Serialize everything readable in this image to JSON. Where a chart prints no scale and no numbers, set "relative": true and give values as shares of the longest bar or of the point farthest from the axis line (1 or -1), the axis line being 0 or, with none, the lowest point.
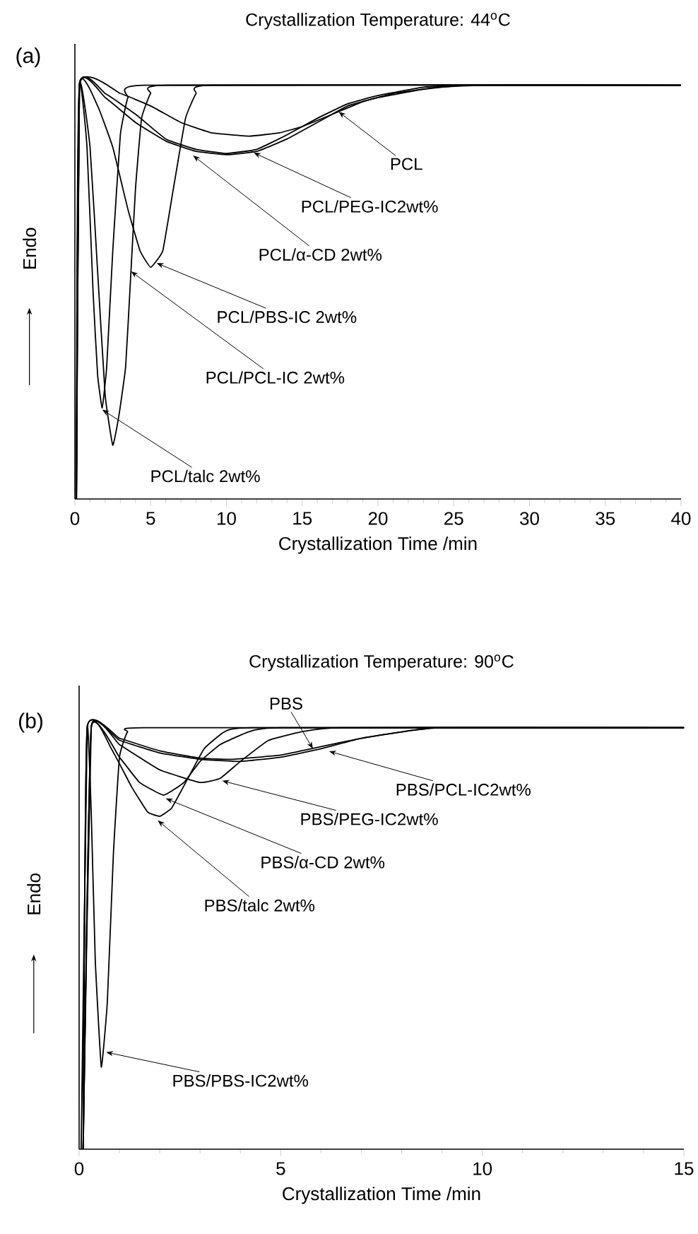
{
  "chart_data": [
    {
      "type": "line",
      "title": "Crystallization Temperature: 44$^{o}$C",
      "xlabel": "Crystallization Time /min",
      "ylabel": "Endo",
      "relative": true,
      "xlim": [
        0,
        40
      ],
      "xticks": [
        0,
        5,
        10,
        15,
        20,
        25,
        30,
        35,
        40
      ],
      "line_style": "solid",
      "marker": "none",
      "grid": false,
      "series": [
        {
          "color": "#000000",
          "x": [
            0.1,
            0.3,
            0.8,
            1.2,
            1.5,
            1.8,
            2.1,
            2.5,
            3,
            3.5,
            4.5,
            40
          ],
          "values": [
            0,
            1,
            0.85,
            0.5,
            0.3,
            0.22,
            0.32,
            0.6,
            0.88,
            0.97,
            1,
            1
          ]
        },
        {
          "color": "#000000",
          "x": [
            0.1,
            0.3,
            1,
            1.5,
            2,
            2.5,
            2.9,
            3.35,
            3.7,
            4,
            4.4,
            5,
            6,
            40
          ],
          "values": [
            0,
            1,
            0.85,
            0.55,
            0.25,
            0.13,
            0.2,
            0.32,
            0.55,
            0.75,
            0.92,
            0.98,
            1,
            1
          ]
        },
        {
          "color": "#000000",
          "x": [
            0.1,
            0.3,
            1.5,
            2.5,
            3.5,
            4.3,
            5,
            5.8,
            6.5,
            7.3,
            8,
            9,
            40
          ],
          "values": [
            0,
            1,
            0.95,
            0.85,
            0.7,
            0.6,
            0.56,
            0.6,
            0.75,
            0.92,
            0.98,
            1,
            1
          ]
        },
        {
          "color": "#000000",
          "x": [
            0.1,
            0.3,
            2,
            4,
            6,
            8,
            10,
            12,
            14,
            16,
            18,
            20,
            23,
            26,
            40
          ],
          "values": [
            0,
            1,
            0.98,
            0.93,
            0.87,
            0.845,
            0.835,
            0.845,
            0.88,
            0.92,
            0.955,
            0.975,
            0.995,
            1,
            1
          ]
        },
        {
          "color": "#000000",
          "x": [
            0.1,
            0.3,
            2,
            4,
            6,
            8,
            10,
            12,
            14,
            16,
            18,
            20,
            23,
            26,
            40
          ],
          "values": [
            0,
            1,
            0.97,
            0.91,
            0.865,
            0.84,
            0.832,
            0.84,
            0.87,
            0.91,
            0.95,
            0.97,
            0.99,
            1,
            1
          ]
        },
        {
          "color": "#000000",
          "x": [
            0.1,
            0.3,
            3,
            5,
            7,
            9,
            11.5,
            13.5,
            15,
            17,
            19,
            21,
            24,
            27,
            40
          ],
          "values": [
            0,
            1,
            0.98,
            0.95,
            0.91,
            0.885,
            0.877,
            0.885,
            0.9,
            0.93,
            0.96,
            0.98,
            0.995,
            1,
            1
          ]
        }
      ],
      "annotations": [
        "(a)",
        {
          "text": "PCL",
          "x": 17.4,
          "y": 0.936
        },
        {
          "text": "PCL/PEG-IC2wt%",
          "x": 11.8,
          "y": 0.837
        },
        {
          "text": "PCL/α-CD 2wt%",
          "x": 7.8,
          "y": 0.83
        },
        {
          "text": "PCL/PBS-IC 2wt%",
          "x": 5.4,
          "y": 0.57
        },
        {
          "text": "PCL/PCL-IC 2wt%",
          "x": 3.7,
          "y": 0.55
        },
        {
          "text": "PCL/talc 2wt%",
          "x": 1.8,
          "y": 0.216
        }
      ]
    },
    {
      "type": "line",
      "title": "Crystallization Temperature: 90$^{o}$C",
      "xlabel": "Crystallization Time /min",
      "ylabel": "Endo",
      "relative": true,
      "xlim": [
        0,
        15
      ],
      "xticks": [
        0,
        5,
        10,
        15
      ],
      "line_style": "solid",
      "marker": "none",
      "grid": false,
      "series": [
        {
          "color": "#000000",
          "x": [
            0.1,
            0.2,
            1,
            2,
            3,
            3.8,
            5,
            6,
            7,
            8,
            9,
            15
          ],
          "values": [
            0,
            1,
            0.975,
            0.945,
            0.928,
            0.925,
            0.935,
            0.955,
            0.975,
            0.99,
            1,
            1
          ]
        },
        {
          "color": "#000000",
          "x": [
            0.1,
            0.2,
            1,
            2,
            3,
            4,
            5,
            6,
            7,
            8,
            9,
            15
          ],
          "values": [
            0,
            1,
            0.97,
            0.94,
            0.925,
            0.92,
            0.93,
            0.95,
            0.975,
            0.99,
            1,
            1
          ]
        },
        {
          "color": "#000000",
          "x": [
            0.1,
            0.3,
            1,
            2,
            3,
            3.5,
            4,
            4.7,
            5.5,
            6.5,
            15
          ],
          "values": [
            0,
            1,
            0.96,
            0.9,
            0.87,
            0.88,
            0.92,
            0.97,
            0.99,
            1,
            1
          ]
        },
        {
          "color": "#000000",
          "x": [
            0.1,
            0.3,
            1,
            1.5,
            2.1,
            2.6,
            3,
            3.5,
            4.2,
            5,
            15
          ],
          "values": [
            0,
            1,
            0.93,
            0.87,
            0.84,
            0.87,
            0.92,
            0.96,
            0.99,
            1,
            1
          ]
        },
        {
          "color": "#000000",
          "x": [
            0.1,
            0.3,
            0.8,
            1.3,
            1.7,
            2,
            2.3,
            2.7,
            3.1,
            3.6,
            4.3,
            15
          ],
          "values": [
            0,
            1,
            0.95,
            0.86,
            0.8,
            0.79,
            0.81,
            0.88,
            0.95,
            0.99,
            1,
            1
          ]
        },
        {
          "color": "#000000",
          "x": [
            0.05,
            0.2,
            0.3,
            0.4,
            0.55,
            0.7,
            0.85,
            1,
            1.2,
            1.6,
            15
          ],
          "values": [
            0,
            1,
            0.8,
            0.45,
            0.195,
            0.35,
            0.7,
            0.93,
            0.99,
            1,
            1
          ]
        }
      ],
      "annotations": [
        "(b)",
        {
          "text": "PBS",
          "x": 5.8,
          "y": 0.95
        },
        {
          "text": "PBS/PCL-IC2wt%",
          "x": 6.2,
          "y": 0.944
        },
        {
          "text": "PBS/PEG-IC2wt%",
          "x": 3.55,
          "y": 0.874
        },
        {
          "text": "PBS/α-CD 2wt%",
          "x": 2.15,
          "y": 0.832
        },
        {
          "text": "PBS/talc 2wt%",
          "x": 1.95,
          "y": 0.78
        },
        {
          "text": "PBS/PBS-IC2wt%",
          "x": 0.67,
          "y": 0.23
        }
      ]
    }
  ]
}
